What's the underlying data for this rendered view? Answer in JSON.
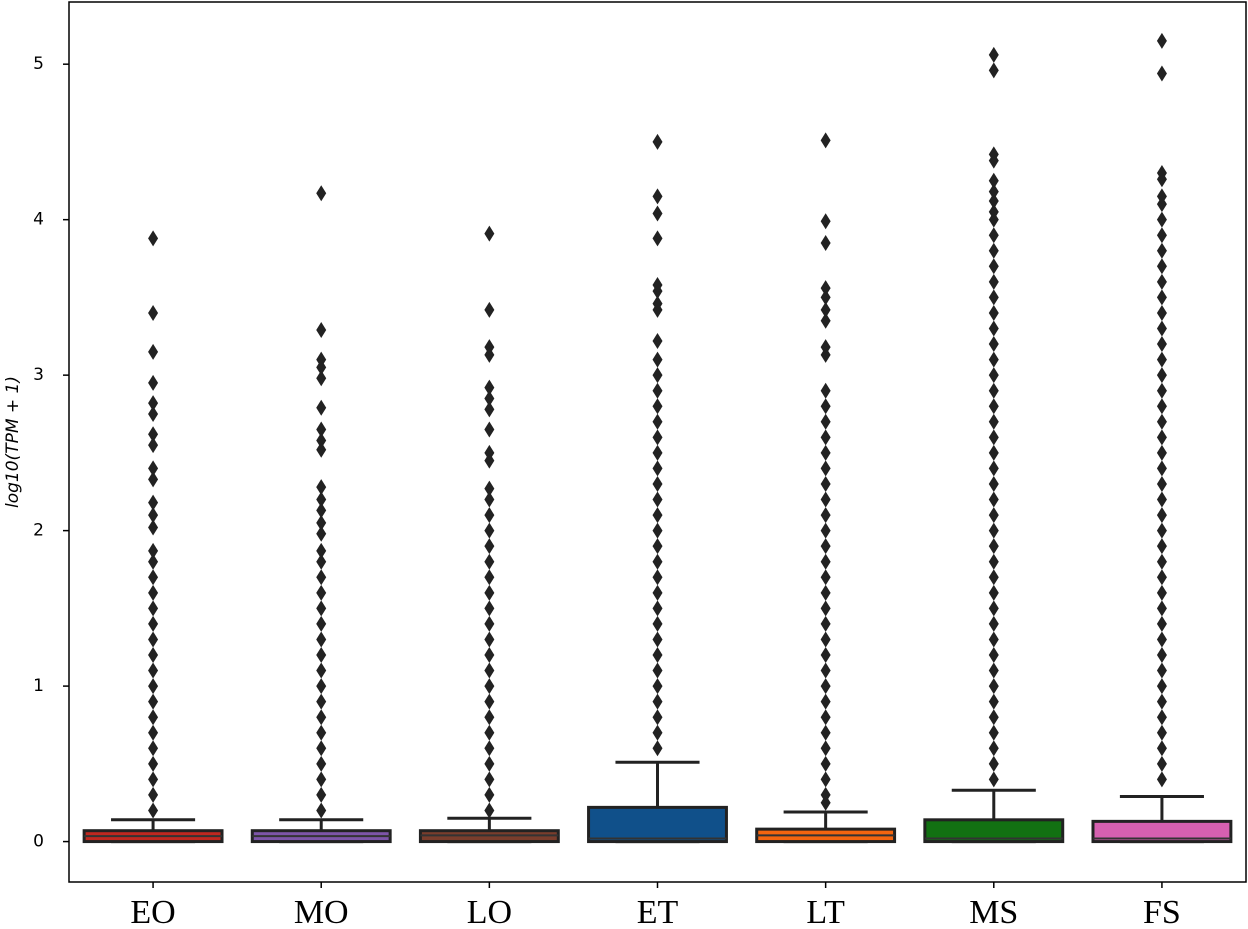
{
  "chart_data": {
    "type": "box",
    "y_label": "log10(TPM + 1)",
    "categories": [
      "EO",
      "MO",
      "LO",
      "ET",
      "LT",
      "MS",
      "FS"
    ],
    "ylim": [
      -0.26,
      5.4
    ],
    "yticks": [
      0,
      1,
      2,
      3,
      4,
      5
    ],
    "boxes": [
      {
        "color": "#c0281f",
        "whislo": 0,
        "q1": 0,
        "median": 0.035,
        "q3": 0.07,
        "whishi": 0.14,
        "fliers": [
          0.2,
          0.3,
          0.4,
          0.5,
          0.6,
          0.7,
          0.8,
          0.9,
          1.0,
          1.1,
          1.2,
          1.3,
          1.4,
          1.5,
          1.6,
          1.7,
          1.8,
          1.87,
          2.02,
          2.1,
          2.18,
          2.33,
          2.4,
          2.55,
          2.62,
          2.75,
          2.82,
          2.95,
          3.15,
          3.4,
          3.88
        ]
      },
      {
        "color": "#7d55a8",
        "whislo": 0,
        "q1": 0,
        "median": 0.035,
        "q3": 0.07,
        "whishi": 0.14,
        "fliers": [
          0.2,
          0.3,
          0.4,
          0.5,
          0.6,
          0.7,
          0.8,
          0.9,
          1.0,
          1.1,
          1.2,
          1.3,
          1.4,
          1.5,
          1.6,
          1.7,
          1.8,
          1.87,
          1.98,
          2.05,
          2.13,
          2.2,
          2.28,
          2.52,
          2.58,
          2.65,
          2.79,
          2.98,
          3.05,
          3.1,
          3.29,
          4.17
        ]
      },
      {
        "color": "#7a3d2c",
        "whislo": 0,
        "q1": 0,
        "median": 0.04,
        "q3": 0.07,
        "whishi": 0.15,
        "fliers": [
          0.2,
          0.3,
          0.4,
          0.5,
          0.6,
          0.7,
          0.8,
          0.9,
          1.0,
          1.1,
          1.2,
          1.3,
          1.4,
          1.5,
          1.6,
          1.7,
          1.8,
          1.9,
          2.0,
          2.1,
          2.2,
          2.27,
          2.45,
          2.5,
          2.65,
          2.78,
          2.85,
          2.92,
          3.13,
          3.18,
          3.42,
          3.91
        ]
      },
      {
        "color": "#10508a",
        "whislo": 0,
        "q1": 0,
        "median": 0.02,
        "q3": 0.22,
        "whishi": 0.51,
        "fliers": [
          0.6,
          0.7,
          0.8,
          0.9,
          1.0,
          1.1,
          1.2,
          1.3,
          1.4,
          1.5,
          1.6,
          1.7,
          1.8,
          1.9,
          2.0,
          2.1,
          2.2,
          2.3,
          2.4,
          2.5,
          2.6,
          2.7,
          2.8,
          2.9,
          3.0,
          3.1,
          3.22,
          3.42,
          3.46,
          3.54,
          3.58,
          3.88,
          4.04,
          4.15,
          4.5
        ]
      },
      {
        "color": "#f4650f",
        "whislo": 0,
        "q1": 0,
        "median": 0.04,
        "q3": 0.08,
        "whishi": 0.19,
        "fliers": [
          0.25,
          0.3,
          0.4,
          0.5,
          0.6,
          0.7,
          0.8,
          0.9,
          1.0,
          1.1,
          1.2,
          1.3,
          1.4,
          1.5,
          1.6,
          1.7,
          1.8,
          1.9,
          2.0,
          2.1,
          2.2,
          2.3,
          2.4,
          2.5,
          2.6,
          2.7,
          2.8,
          2.9,
          3.13,
          3.18,
          3.35,
          3.42,
          3.5,
          3.56,
          3.85,
          3.99,
          4.51
        ]
      },
      {
        "color": "#127112",
        "whislo": 0,
        "q1": 0,
        "median": 0.02,
        "q3": 0.14,
        "whishi": 0.33,
        "fliers": [
          0.4,
          0.5,
          0.6,
          0.7,
          0.8,
          0.9,
          1.0,
          1.1,
          1.2,
          1.3,
          1.4,
          1.5,
          1.6,
          1.7,
          1.8,
          1.9,
          2.0,
          2.1,
          2.2,
          2.3,
          2.4,
          2.5,
          2.6,
          2.7,
          2.8,
          2.9,
          3.0,
          3.1,
          3.2,
          3.3,
          3.4,
          3.5,
          3.6,
          3.7,
          3.8,
          3.9,
          4.0,
          4.05,
          4.12,
          4.18,
          4.25,
          4.38,
          4.42,
          4.96,
          5.06
        ]
      },
      {
        "color": "#d660b0",
        "whislo": 0,
        "q1": 0,
        "median": 0.02,
        "q3": 0.13,
        "whishi": 0.29,
        "fliers": [
          0.4,
          0.5,
          0.6,
          0.7,
          0.8,
          0.9,
          1.0,
          1.1,
          1.2,
          1.3,
          1.4,
          1.5,
          1.6,
          1.7,
          1.8,
          1.9,
          2.0,
          2.1,
          2.2,
          2.3,
          2.4,
          2.5,
          2.6,
          2.7,
          2.8,
          2.9,
          3.0,
          3.1,
          3.2,
          3.3,
          3.4,
          3.5,
          3.6,
          3.7,
          3.8,
          3.9,
          4.0,
          4.1,
          4.15,
          4.26,
          4.3,
          4.94,
          5.15
        ]
      }
    ]
  }
}
